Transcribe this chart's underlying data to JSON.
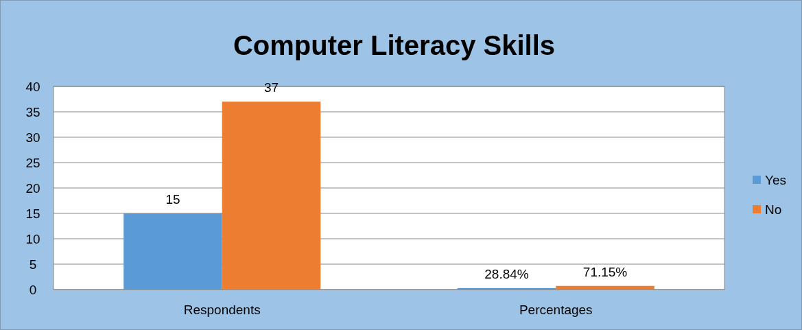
{
  "chart_data": {
    "type": "bar",
    "title": "Computer Literacy Skills",
    "categories": [
      "Respondents",
      "Percentages"
    ],
    "series": [
      {
        "name": "Yes",
        "color": "#5b9bd5",
        "values": [
          15,
          0.2884
        ],
        "value_labels": [
          "15",
          "28.84%"
        ]
      },
      {
        "name": "No",
        "color": "#ed7d31",
        "values": [
          37,
          0.7115
        ],
        "value_labels": [
          "37",
          "71.15%"
        ]
      }
    ],
    "ylim": [
      0,
      40
    ],
    "yticks": [
      0,
      5,
      10,
      15,
      20,
      25,
      30,
      35,
      40
    ],
    "grid": "y",
    "legend": "right"
  }
}
